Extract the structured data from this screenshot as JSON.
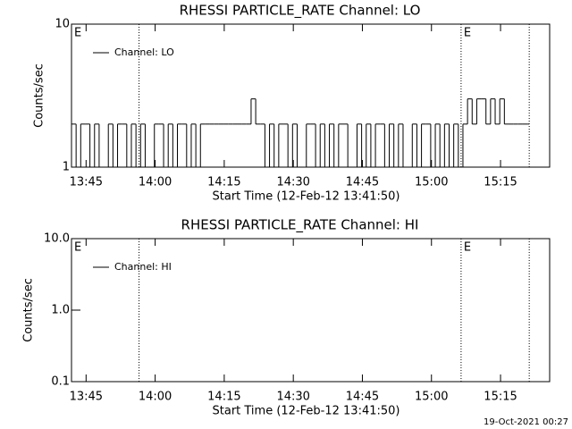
{
  "chart_data": [
    {
      "type": "line",
      "drawstyle": "steps",
      "log_y": true,
      "title": "RHESSI PARTICLE_RATE Channel: LO",
      "xlabel": "Start Time (12-Feb-12 13:41:50)",
      "ylabel": "Counts/sec",
      "xlim": [
        0,
        6230
      ],
      "ylim": [
        1,
        10
      ],
      "xticks": [
        {
          "value": 190,
          "label": "13:45"
        },
        {
          "value": 1090,
          "label": "14:00"
        },
        {
          "value": 1990,
          "label": "14:15"
        },
        {
          "value": 2890,
          "label": "14:30"
        },
        {
          "value": 3790,
          "label": "14:45"
        },
        {
          "value": 4690,
          "label": "15:00"
        },
        {
          "value": 5590,
          "label": "15:15"
        }
      ],
      "yticks": [
        1,
        10
      ],
      "vlines": [
        880,
        5076,
        5964
      ],
      "annotations": [
        {
          "text": "E",
          "x": 0
        },
        {
          "text": "E",
          "x": 5076
        }
      ],
      "legend": "upper-left",
      "x": [
        0,
        60,
        120,
        180,
        240,
        300,
        360,
        420,
        480,
        540,
        600,
        660,
        720,
        780,
        840,
        900,
        960,
        1020,
        1080,
        1140,
        1200,
        1260,
        1320,
        1380,
        1440,
        1500,
        1560,
        1620,
        1680,
        1740,
        1800,
        1860,
        1920,
        1980,
        2040,
        2100,
        2160,
        2220,
        2280,
        2340,
        2400,
        2460,
        2520,
        2580,
        2640,
        2700,
        2760,
        2820,
        2880,
        2940,
        3000,
        3060,
        3120,
        3180,
        3240,
        3300,
        3360,
        3420,
        3480,
        3540,
        3600,
        3660,
        3720,
        3780,
        3840,
        3900,
        3960,
        4020,
        4080,
        4140,
        4200,
        4260,
        4320,
        4380,
        4440,
        4500,
        4560,
        4620,
        4680,
        4740,
        4800,
        4860,
        4920,
        4980,
        5040,
        5100,
        5160,
        5220,
        5280,
        5340,
        5400,
        5460,
        5520,
        5580,
        5640,
        5700,
        5760,
        5820,
        5880,
        5940
      ],
      "series": [
        {
          "name": "Channel: LO",
          "color": "#000000",
          "values": [
            2,
            1,
            2,
            2,
            1,
            2,
            1,
            1,
            2,
            1,
            2,
            2,
            1,
            2,
            1,
            2,
            1,
            1,
            2,
            2,
            1,
            2,
            1,
            2,
            2,
            1,
            2,
            1,
            2,
            2,
            2,
            2,
            2,
            2,
            2,
            2,
            2,
            2,
            2,
            3,
            2,
            2,
            1,
            2,
            1,
            2,
            2,
            1,
            2,
            1,
            1,
            2,
            2,
            1,
            2,
            1,
            2,
            1,
            2,
            2,
            1,
            1,
            2,
            1,
            2,
            1,
            2,
            2,
            1,
            2,
            1,
            2,
            1,
            1,
            2,
            1,
            2,
            2,
            1,
            2,
            1,
            2,
            1,
            2,
            1,
            2,
            3,
            2,
            3,
            3,
            2,
            3,
            2,
            3,
            2,
            2,
            2,
            2,
            2,
            2
          ]
        }
      ]
    },
    {
      "type": "line",
      "drawstyle": "steps",
      "log_y": true,
      "title": "RHESSI PARTICLE_RATE Channel: HI",
      "xlabel": "Start Time (12-Feb-12 13:41:50)",
      "ylabel": "Counts/sec",
      "xlim": [
        0,
        6230
      ],
      "ylim": [
        0.1,
        10
      ],
      "xticks": [
        {
          "value": 190,
          "label": "13:45"
        },
        {
          "value": 1090,
          "label": "14:00"
        },
        {
          "value": 1990,
          "label": "14:15"
        },
        {
          "value": 2890,
          "label": "14:30"
        },
        {
          "value": 3790,
          "label": "14:45"
        },
        {
          "value": 4690,
          "label": "15:00"
        },
        {
          "value": 5590,
          "label": "15:15"
        }
      ],
      "yticks": [
        {
          "value": 0.1,
          "label": "0.1"
        },
        {
          "value": 1,
          "label": "1.0"
        },
        {
          "value": 10,
          "label": "10.0"
        }
      ],
      "vlines": [
        880,
        5076,
        5964
      ],
      "annotations": [
        {
          "text": "E",
          "x": 0
        },
        {
          "text": "E",
          "x": 5076
        }
      ],
      "legend": "upper-left",
      "x": [],
      "series": [
        {
          "name": "Channel: HI",
          "color": "#000000",
          "values": []
        }
      ]
    }
  ],
  "footer": "19-Oct-2021 00:27"
}
